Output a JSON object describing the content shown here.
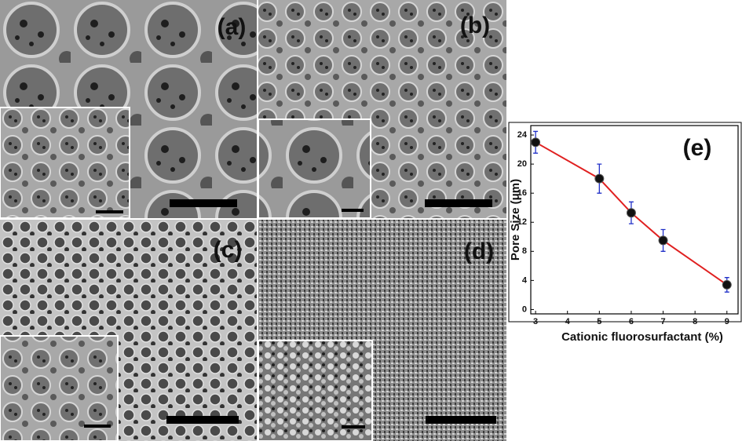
{
  "panels": [
    {
      "label": "(a)"
    },
    {
      "label": "(b)"
    },
    {
      "label": "(c)"
    },
    {
      "label": "(d)"
    }
  ],
  "chart_data": {
    "type": "line",
    "label": "(e)",
    "x_label": "Cationic fluorosurfactant (%)",
    "y_label": "Pore Size (μm)",
    "x": [
      3,
      5,
      6,
      7,
      9
    ],
    "values": [
      23,
      18,
      13.3,
      9.5,
      3.4
    ],
    "errors": [
      1.5,
      2,
      1.5,
      1.5,
      1
    ],
    "line_color": "#e02020",
    "marker_color": "#111111",
    "error_color": "#2030c8",
    "xlim": [
      2.85,
      9.35
    ],
    "xticks": [
      3,
      4,
      5,
      6,
      7,
      8,
      9
    ],
    "ylim": [
      -0.6,
      25.3
    ],
    "yticks": [
      0,
      4,
      8,
      12,
      16,
      20,
      24
    ]
  }
}
